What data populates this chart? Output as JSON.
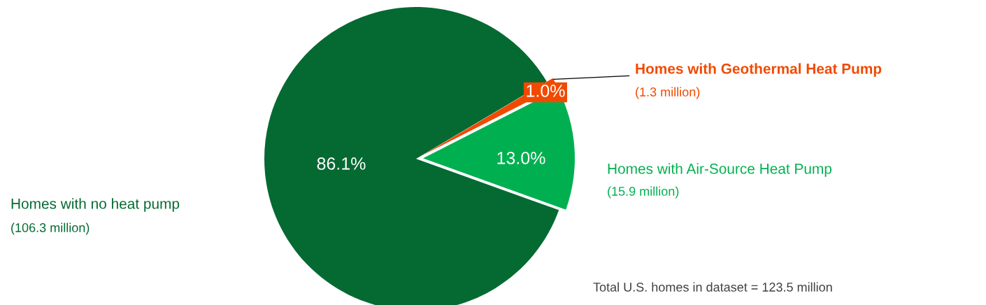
{
  "chart_data": {
    "type": "pie",
    "categories": [
      "Homes with no heat pump",
      "Homes with Air-Source Heat Pump",
      "Homes with Geothermal Heat Pump"
    ],
    "values": [
      86.1,
      13.0,
      1.0
    ],
    "colors": [
      "#046a32",
      "#00b050",
      "#f04a00"
    ],
    "value_labels": [
      "86.1%",
      "13.0%",
      "1.0%"
    ],
    "annotations": [
      "(106.3 million)",
      "(15.9 million)",
      "(1.3 million)",
      "Total U.S. homes in dataset = 123.5 million"
    ],
    "legend": false
  }
}
